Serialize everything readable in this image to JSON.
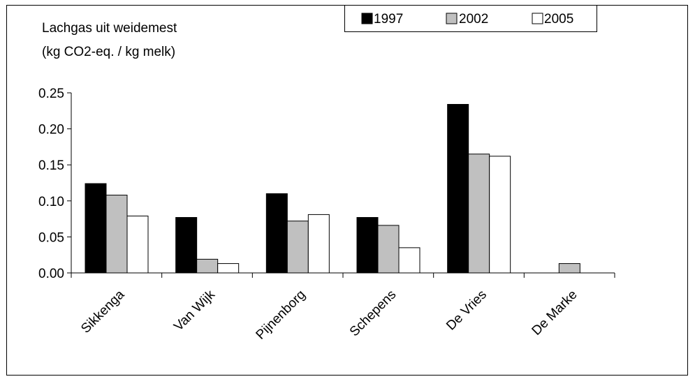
{
  "chart_data": {
    "type": "bar",
    "ylabel_lines": [
      "Lachgas uit weidemest",
      "(kg CO2-eq. / kg melk)"
    ],
    "categories": [
      "Sikkenga",
      "Van Wijk",
      "Pijnenborg",
      "Schepens",
      "De Vries",
      "De Marke"
    ],
    "series": [
      {
        "name": "1997",
        "color": "#000000",
        "values": [
          0.124,
          0.077,
          0.11,
          0.077,
          0.234,
          0
        ]
      },
      {
        "name": "2002",
        "color": "#c0c0c0",
        "values": [
          0.108,
          0.019,
          0.072,
          0.066,
          0.165,
          0.013
        ]
      },
      {
        "name": "2005",
        "color": "#ffffff",
        "values": [
          0.079,
          0.013,
          0.081,
          0.035,
          0.162,
          0
        ]
      }
    ],
    "ylim": [
      0,
      0.25
    ],
    "yticks": [
      "0.00",
      "0.05",
      "0.10",
      "0.15",
      "0.20",
      "0.25"
    ],
    "legend_position": "top-right",
    "grid": false
  }
}
